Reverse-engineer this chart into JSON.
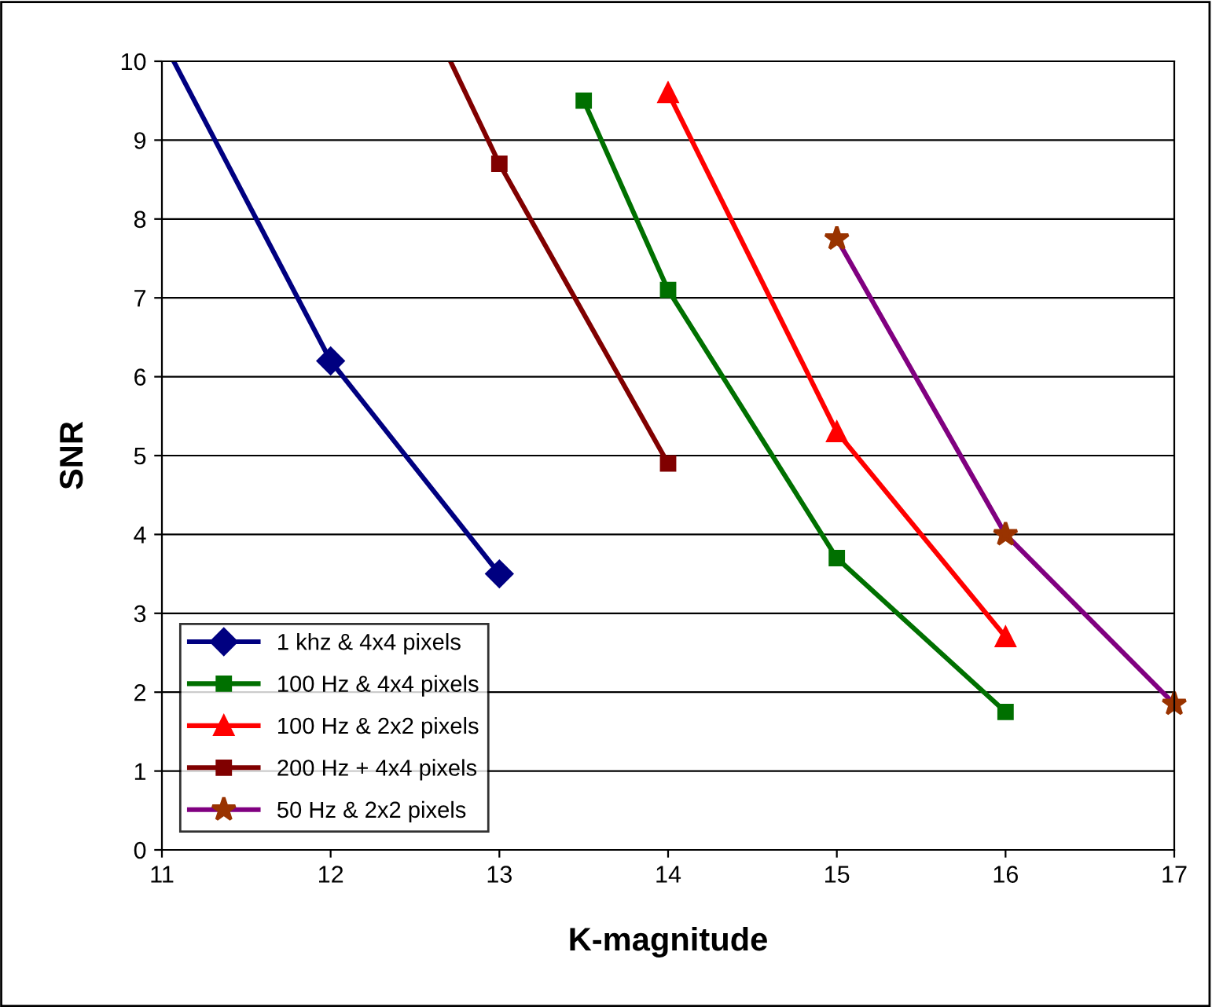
{
  "chart_data": {
    "type": "line",
    "xlabel": "K-magnitude",
    "ylabel": "SNR",
    "xlim": [
      11,
      17
    ],
    "ylim": [
      0,
      10
    ],
    "xticks": [
      11,
      12,
      13,
      14,
      15,
      16,
      17
    ],
    "yticks": [
      0,
      1,
      2,
      3,
      4,
      5,
      6,
      7,
      8,
      9,
      10
    ],
    "grid": "y",
    "legend": "bottom left",
    "series": [
      {
        "name": "1 khz & 4x4 pixels",
        "color": "#000080",
        "marker": "diamond",
        "x": [
          11.07,
          12,
          13
        ],
        "values": [
          10,
          6.2,
          3.5
        ]
      },
      {
        "name": "100 Hz & 4x4 pixels",
        "color": "#007000",
        "marker": "square",
        "x": [
          13.5,
          14,
          15,
          16
        ],
        "values": [
          9.5,
          7.1,
          3.7,
          1.75
        ]
      },
      {
        "name": "100 Hz & 2x2 pixels",
        "color": "#ff0000",
        "marker": "triangle",
        "x": [
          14,
          15,
          16
        ],
        "values": [
          9.6,
          5.3,
          2.7
        ]
      },
      {
        "name": "200 Hz + 4x4 pixels",
        "color": "#800000",
        "marker": "square",
        "x": [
          12.71,
          13,
          14
        ],
        "values": [
          10,
          8.7,
          4.9
        ]
      },
      {
        "name": "50 Hz & 2x2 pixels",
        "color": "#800080",
        "colors": [
          "#993300",
          "#993300",
          "#993300"
        ],
        "marker": "star",
        "x": [
          15,
          16,
          17
        ],
        "values": [
          7.75,
          4.0,
          1.85
        ]
      }
    ]
  }
}
